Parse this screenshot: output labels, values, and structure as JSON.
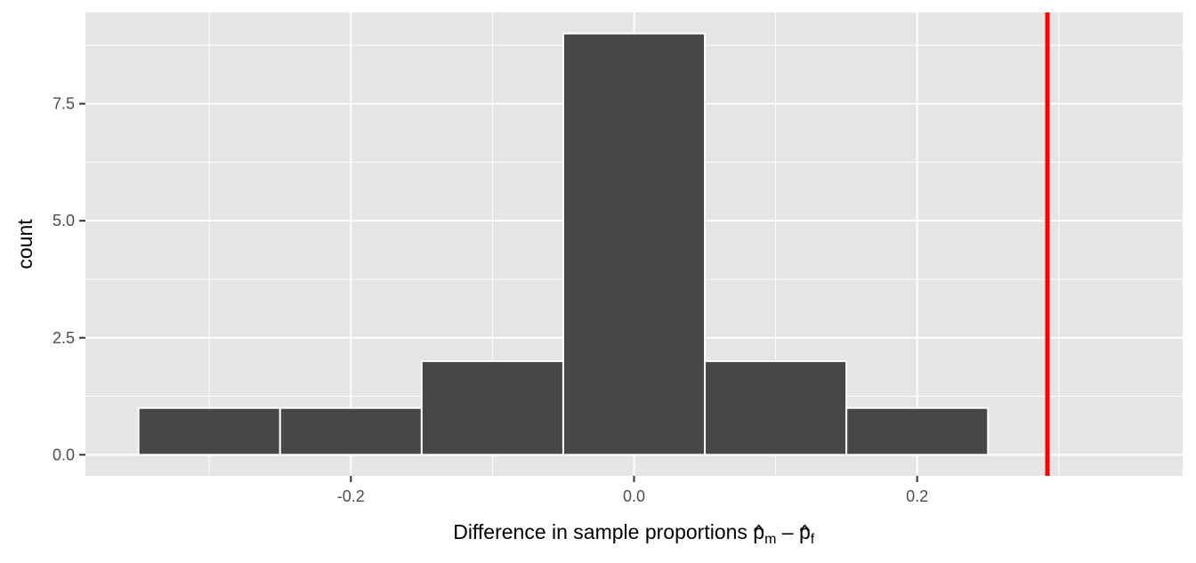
{
  "chart_data": {
    "type": "bar",
    "subtype": "histogram",
    "title": "",
    "xlabel": {
      "main": "Difference in sample proportions ",
      "symbol_1": "p",
      "subscript_1": "m",
      "operator": " – ",
      "symbol_2": "p",
      "subscript_2": "f"
    },
    "ylabel": "count",
    "xlim": [
      -0.3875,
      0.3875
    ],
    "ylim": [
      -0.45,
      9.45
    ],
    "x_ticks": [
      {
        "value": -0.2,
        "label": "-0.2"
      },
      {
        "value": 0.0,
        "label": "0.0"
      },
      {
        "value": 0.2,
        "label": "0.2"
      }
    ],
    "y_ticks": [
      {
        "value": 0.0,
        "label": "0.0"
      },
      {
        "value": 2.5,
        "label": "2.5"
      },
      {
        "value": 5.0,
        "label": "5.0"
      },
      {
        "value": 7.5,
        "label": "7.5"
      }
    ],
    "bins": [
      {
        "x0": -0.35,
        "x1": -0.25,
        "count": 1
      },
      {
        "x0": -0.25,
        "x1": -0.15,
        "count": 1
      },
      {
        "x0": -0.15,
        "x1": -0.05,
        "count": 2
      },
      {
        "x0": -0.05,
        "x1": 0.05,
        "count": 9
      },
      {
        "x0": 0.05,
        "x1": 0.15,
        "count": 2
      },
      {
        "x0": 0.15,
        "x1": 0.25,
        "count": 1
      }
    ],
    "reference_line": {
      "x": 0.292,
      "color": "#ff0000"
    },
    "grid": true,
    "legend": "none",
    "colors": {
      "panel_background": "#e5e5e5",
      "grid_major": "#ffffff",
      "bar_fill": "#474747",
      "bar_outline": "#ffffff"
    }
  }
}
